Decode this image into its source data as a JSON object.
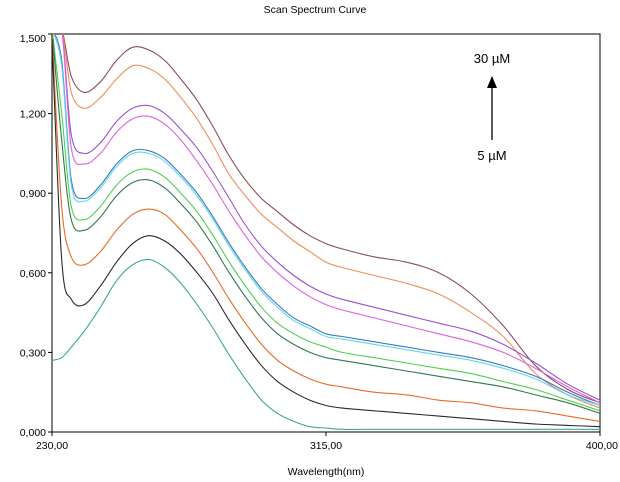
{
  "chart_data": {
    "type": "line",
    "title": "Scan Spectrum Curve",
    "xlabel": "Wavelength(nm)",
    "ylabel": "",
    "xlim": [
      230,
      400
    ],
    "ylim": [
      0,
      1.5
    ],
    "x_ticks": [
      230,
      315,
      400
    ],
    "x_tick_labels": [
      "230,00",
      "315,00",
      "400,00"
    ],
    "y_ticks": [
      0,
      0.3,
      0.6,
      0.9,
      1.2,
      1.5
    ],
    "y_tick_labels": [
      "0,000",
      "0,300",
      "0,600",
      "0,900",
      "1,200",
      "1,500"
    ],
    "grid": false,
    "legend": "none",
    "annotation": {
      "top_label": "30 µM",
      "bottom_label": "5 µM",
      "arrow": "up"
    },
    "x": [
      230,
      233,
      236,
      240,
      245,
      250,
      255,
      260,
      265,
      270,
      275,
      280,
      285,
      290,
      295,
      300,
      305,
      310,
      315,
      320,
      330,
      340,
      350,
      360,
      370,
      380,
      390,
      400
    ],
    "series": [
      {
        "color": "#8b4a5a",
        "values": [
          1.52,
          1.52,
          1.34,
          1.28,
          1.32,
          1.4,
          1.45,
          1.44,
          1.4,
          1.33,
          1.25,
          1.15,
          1.04,
          0.95,
          0.88,
          0.83,
          0.78,
          0.74,
          0.71,
          0.69,
          0.66,
          0.64,
          0.6,
          0.52,
          0.4,
          0.25,
          0.16,
          0.11
        ]
      },
      {
        "color": "#f08c5a",
        "values": [
          1.52,
          1.52,
          1.28,
          1.22,
          1.26,
          1.33,
          1.38,
          1.37,
          1.33,
          1.26,
          1.18,
          1.08,
          0.97,
          0.89,
          0.82,
          0.77,
          0.72,
          0.68,
          0.64,
          0.62,
          0.59,
          0.56,
          0.52,
          0.45,
          0.36,
          0.22,
          0.14,
          0.09
        ]
      },
      {
        "color": "#9a4fd0",
        "values": [
          1.52,
          1.52,
          1.12,
          1.05,
          1.09,
          1.17,
          1.22,
          1.23,
          1.2,
          1.14,
          1.07,
          0.98,
          0.88,
          0.78,
          0.7,
          0.64,
          0.59,
          0.55,
          0.52,
          0.5,
          0.47,
          0.44,
          0.41,
          0.38,
          0.33,
          0.26,
          0.18,
          0.12
        ]
      },
      {
        "color": "#e060e0",
        "values": [
          1.52,
          1.52,
          1.07,
          1.01,
          1.05,
          1.13,
          1.18,
          1.19,
          1.16,
          1.1,
          1.02,
          0.93,
          0.83,
          0.74,
          0.66,
          0.6,
          0.55,
          0.51,
          0.48,
          0.46,
          0.43,
          0.4,
          0.37,
          0.34,
          0.3,
          0.24,
          0.17,
          0.11
        ]
      },
      {
        "color": "#3c78c8",
        "values": [
          1.52,
          1.4,
          0.95,
          0.88,
          0.93,
          1.01,
          1.06,
          1.06,
          1.03,
          0.97,
          0.9,
          0.81,
          0.71,
          0.62,
          0.54,
          0.48,
          0.43,
          0.4,
          0.37,
          0.36,
          0.34,
          0.32,
          0.3,
          0.28,
          0.25,
          0.21,
          0.15,
          0.1
        ]
      },
      {
        "color": "#60d8e8",
        "values": [
          1.52,
          1.38,
          0.93,
          0.87,
          0.92,
          1.0,
          1.05,
          1.05,
          1.02,
          0.96,
          0.89,
          0.8,
          0.7,
          0.61,
          0.53,
          0.47,
          0.42,
          0.39,
          0.36,
          0.35,
          0.33,
          0.31,
          0.29,
          0.27,
          0.24,
          0.2,
          0.14,
          0.1
        ]
      },
      {
        "color": "#50d050",
        "values": [
          1.52,
          1.2,
          0.85,
          0.8,
          0.85,
          0.93,
          0.98,
          0.99,
          0.96,
          0.9,
          0.83,
          0.74,
          0.64,
          0.55,
          0.47,
          0.41,
          0.37,
          0.34,
          0.32,
          0.3,
          0.28,
          0.26,
          0.24,
          0.22,
          0.19,
          0.16,
          0.12,
          0.08
        ]
      },
      {
        "color": "#2f7a4a",
        "values": [
          1.52,
          1.1,
          0.8,
          0.76,
          0.81,
          0.89,
          0.94,
          0.95,
          0.92,
          0.86,
          0.79,
          0.7,
          0.6,
          0.51,
          0.43,
          0.37,
          0.33,
          0.3,
          0.28,
          0.27,
          0.25,
          0.23,
          0.21,
          0.19,
          0.17,
          0.14,
          0.11,
          0.07
        ]
      },
      {
        "color": "#e86a2a",
        "values": [
          1.5,
          0.85,
          0.66,
          0.63,
          0.68,
          0.76,
          0.82,
          0.84,
          0.82,
          0.76,
          0.69,
          0.6,
          0.5,
          0.41,
          0.33,
          0.27,
          0.23,
          0.2,
          0.18,
          0.17,
          0.15,
          0.14,
          0.12,
          0.11,
          0.09,
          0.08,
          0.06,
          0.04
        ]
      },
      {
        "color": "#2a2a2a",
        "values": [
          1.48,
          0.65,
          0.5,
          0.48,
          0.55,
          0.64,
          0.71,
          0.74,
          0.72,
          0.67,
          0.6,
          0.52,
          0.42,
          0.33,
          0.25,
          0.19,
          0.15,
          0.12,
          0.1,
          0.09,
          0.08,
          0.07,
          0.06,
          0.05,
          0.04,
          0.03,
          0.025,
          0.02
        ]
      },
      {
        "color": "#3aaa8a",
        "values": [
          0.27,
          0.28,
          0.32,
          0.38,
          0.47,
          0.57,
          0.63,
          0.65,
          0.62,
          0.56,
          0.48,
          0.39,
          0.29,
          0.2,
          0.12,
          0.07,
          0.04,
          0.02,
          0.015,
          0.01,
          0.01,
          0.01,
          0.01,
          0.01,
          0.01,
          0.01,
          0.01,
          0.01
        ]
      }
    ]
  }
}
